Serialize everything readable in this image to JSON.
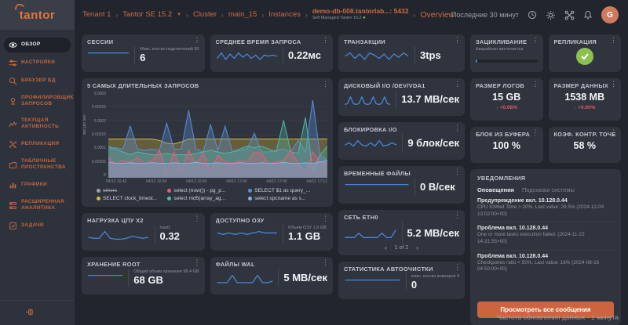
{
  "colors": {
    "accent": "#cf6a45",
    "spark": "#4a85d6",
    "alert_red": "#d85c6a",
    "ok_green": "#8cc152",
    "button_orange": "#cd6440"
  },
  "sidebar": {
    "logo": "tantor",
    "items": [
      {
        "label": "ОБЗОР",
        "icon": "eye-icon",
        "active": true
      },
      {
        "label": "НАСТРОЙКИ",
        "icon": "sliders-icon",
        "active": false
      },
      {
        "label": "БРАУЗЕР БД",
        "icon": "database-search-icon",
        "active": false
      },
      {
        "label": "ПРОФИЛИРОВЩИК ЗАПРОСОВ",
        "icon": "profiler-icon",
        "active": false
      },
      {
        "label": "ТЕКУЩАЯ АКТИВНОСТЬ",
        "icon": "activity-icon",
        "active": false
      },
      {
        "label": "РЕПЛИКАЦИЯ",
        "icon": "replication-icon",
        "active": false
      },
      {
        "label": "ТАБЛИЧНЫЕ ПРОСТРАНСТВА",
        "icon": "tablespace-icon",
        "active": false
      },
      {
        "label": "ГРАФИКИ",
        "icon": "charts-icon",
        "active": false
      },
      {
        "label": "РАСШИРЕННАЯ АНАЛИТИКА",
        "icon": "analytics-icon",
        "active": false
      },
      {
        "label": "ЗАДАЧИ",
        "icon": "tasks-icon",
        "active": false
      }
    ]
  },
  "header": {
    "breadcrumbs": [
      "Tenant 1",
      "Tantor SE 15.2",
      "Cluster",
      "main_15",
      "Instances"
    ],
    "instance": {
      "name": "demo-db-008.tantorlab...: 5432",
      "subtitle": "Self Managed Tantor 15.2"
    },
    "current_page": "Overview",
    "time_range": "Последние 30 минут",
    "avatar": "G"
  },
  "cards": {
    "sessions": {
      "title": "СЕССИИ",
      "sublabel": "Макс. кол-во подключений 50",
      "value": "6",
      "spark": [
        5,
        5,
        5,
        5,
        5,
        5,
        5,
        5
      ]
    },
    "avg_query": {
      "title": "СРЕДНЕЕ ВРЕМЯ ЗАПРОСА",
      "value": "0.22мс",
      "spark": [
        3,
        8,
        2,
        7,
        3,
        8,
        4,
        7,
        3,
        6,
        2,
        6,
        5,
        6,
        5
      ]
    },
    "transactions": {
      "title": "ТРАНЗАКЦИИ",
      "value": "3tps",
      "spark": [
        5,
        8,
        3,
        7,
        2,
        8,
        6,
        3,
        7,
        2,
        7,
        4,
        8,
        5
      ]
    },
    "wraparound": {
      "title": "ЗАЦИКЛИВАНИЕ",
      "sublabel": "Аварийная автоочистка",
      "progress_pct": 2
    },
    "replication": {
      "title": "РЕПЛИКАЦИЯ",
      "status": "ok"
    },
    "disk_io": {
      "title": "ДИСКОВЫЙ I/O /DEV/VDA1",
      "value": "13.7 MB/сек",
      "spark": [
        1,
        2,
        9,
        2,
        1,
        2,
        9,
        2,
        1,
        2,
        9,
        2,
        1,
        2,
        9,
        2,
        1
      ]
    },
    "log_size": {
      "title": "РАЗМЕР ЛОГОВ",
      "value": "15 GB",
      "delta": "↑ +0.06%"
    },
    "data_size": {
      "title": "РАЗМЕР ДАННЫХ",
      "value": "1538 MB",
      "delta": "↑ +0.00%"
    },
    "block_io": {
      "title": "БЛОКИРОВКА I/O",
      "value": "9 блок/сек",
      "spark": [
        4,
        6,
        3,
        8,
        4,
        3,
        6,
        3,
        8,
        3,
        4,
        6,
        4
      ]
    },
    "buffer_hit": {
      "title": "БЛОК ИЗ БУФЕРА",
      "value": "100 %"
    },
    "checkpoint_ratio": {
      "title": "КОЭФ. КОНТР. ТОЧЕК",
      "value": "58 %"
    },
    "temp_files": {
      "title": "ВРЕМЕННЫЕ ФАЙЛЫ",
      "value": "0 B/сек",
      "spark": [
        2,
        2,
        2,
        2,
        2,
        2,
        2,
        2
      ]
    },
    "cpu_load": {
      "title": "НАГРУЗКА ЦПУ Х2",
      "sublabel": "load1",
      "value": "0.32",
      "spark": [
        3,
        2,
        2,
        9,
        2,
        1,
        1,
        2,
        4,
        3,
        2,
        3
      ]
    },
    "ram": {
      "title": "ДОСТУПНО ОЗУ",
      "sublabel": "Объем ОЗУ 1.9 GB",
      "value": "1.1 GB",
      "spark": [
        5,
        4,
        5,
        4,
        5,
        4,
        5,
        6,
        5,
        5,
        5
      ]
    },
    "network": {
      "title": "СЕТЬ ETH0",
      "value": "5.2 MB/сек",
      "spark": [
        1,
        1,
        1,
        5,
        1,
        1,
        1,
        1,
        5,
        1,
        1,
        8
      ],
      "pager": {
        "prev": "‹",
        "label": "1 of 2",
        "next": "›"
      }
    },
    "storage": {
      "title": "ХРАНЕНИЕ ROOT",
      "sublabel": "Общий объем хранения 98.4 GB",
      "value": "68 GB",
      "spark": [
        5,
        5,
        5,
        5,
        5,
        5,
        5,
        5
      ]
    },
    "wal": {
      "title": "ФАЙЛЫ WAL",
      "value": "5 MB/сек",
      "spark": [
        1,
        1,
        1,
        6,
        1,
        1,
        1,
        1,
        6,
        1,
        1,
        2
      ]
    },
    "autovacuum": {
      "title": "СТАТИСТИКА АВТООЧИСТКИ",
      "sublabel": "макс. кол-во воркеров 4",
      "value": "0",
      "spark": [
        3,
        3,
        3,
        3,
        3,
        3,
        3,
        3
      ]
    }
  },
  "chart_data": {
    "type": "area",
    "title": "5 САМЫХ ДЛИТЕЛЬНЫХ ЗАПРОСОВ",
    "ylabel": "sec per sec",
    "ylim": [
      0,
      0.0003
    ],
    "value_scale": 1e-05,
    "yticks": [
      "0.0003",
      "0.00025",
      "0.0002",
      "0.00015",
      "0.0001",
      "0.00005",
      "0"
    ],
    "xticks": [
      "04/12 16:42",
      "04/12 16:50",
      "04/12 16:55",
      "04/12 17:00",
      "04/12 17:05",
      "04/12 17:12"
    ],
    "series": [
      {
        "name": "SELECT clock_timest...",
        "color": "#d4b83f",
        "values": [
          13.5,
          13.5,
          13.5,
          13.5,
          13.5,
          13.5,
          13.5,
          13,
          12,
          11.8,
          12.5,
          13.5,
          13.5,
          13.5,
          13.5,
          13.5,
          13.5,
          13.5,
          13.5,
          13.5,
          13.5,
          13.5,
          13.5,
          13.5,
          13.5,
          13.5,
          13.5,
          13.5,
          13.5,
          13.5,
          13.5
        ]
      },
      {
        "name": "SELECT $1 as query_...",
        "color": "#5b8fd9",
        "values": [
          10,
          10.5,
          10,
          18,
          10,
          9.5,
          10,
          9.5,
          19,
          10,
          10,
          23.5,
          10,
          9,
          18.5,
          9.5,
          18,
          9,
          9.5,
          10,
          15.5,
          9,
          9,
          9.5,
          10,
          9,
          13,
          9,
          27,
          8,
          6
        ]
      },
      {
        "name": "select md5(array_ag...",
        "color": "#4fb8a8",
        "values": [
          11,
          10,
          9,
          8,
          9,
          8.5,
          8,
          8,
          8.5,
          8,
          8,
          8,
          8.5,
          9,
          9.5,
          9,
          8.5,
          9,
          10,
          11,
          10.5,
          11,
          10,
          9,
          20,
          9,
          8.5,
          21,
          3,
          8,
          11
        ]
      },
      {
        "name": "select (now()) - pg_p...",
        "color": "#e0607a",
        "values": [
          7,
          5,
          6,
          5.5,
          7,
          5,
          6,
          9.5,
          2,
          9,
          2.5,
          9.5,
          5,
          8.5,
          2,
          8,
          5.5,
          5,
          6,
          5.5,
          9,
          8.5,
          5,
          5.5,
          6,
          9.5,
          5,
          2,
          9,
          5.5,
          5
        ]
      },
      {
        "name": "select spcname as s...",
        "color": "#7fb3e8",
        "values": [
          5.5,
          5,
          5,
          5.2,
          5,
          5,
          5.3,
          5,
          5,
          5.2,
          5,
          5,
          5.4,
          5,
          5,
          5.2,
          5,
          5,
          5.3,
          5,
          5,
          5.2,
          5,
          5,
          5.4,
          5,
          5,
          5.2,
          5,
          5.5,
          6
        ]
      }
    ],
    "legend": [
      {
        "label": "others",
        "color": "#9aa0a8",
        "disabled": true
      },
      {
        "label": "select (now()) - pg_p...",
        "color": "#e0607a",
        "disabled": false
      },
      {
        "label": "SELECT $1 as query_...",
        "color": "#5b8fd9",
        "disabled": false
      },
      {
        "label": "SELECT clock_timest...",
        "color": "#d4b83f",
        "disabled": false
      },
      {
        "label": "select md5(array_ag...",
        "color": "#4fb8a8",
        "disabled": false
      },
      {
        "label": "select spcname as s...",
        "color": "#7fb3e8",
        "disabled": false
      }
    ]
  },
  "notifications": {
    "title": "УВЕДОМЛЕНИЯ",
    "tabs": [
      {
        "label": "Оповещения",
        "active": true
      },
      {
        "label": "Подсказки системы",
        "active": false
      }
    ],
    "alerts": [
      {
        "title": "Предупреждение вкл. 10.128.0.44",
        "body": "CPU IOWait Time > 20%, Last value: 29.5% (2024-12-04 13:02:00+00)"
      },
      {
        "title": "Проблема вкл. 10.128.0.44",
        "body": "One or more tasks execution failed. (2024-11-22 14:31:55+00)"
      },
      {
        "title": "Проблема вкл. 10.128.0.44",
        "body": "Checkpoints ratio < 50%, Last value: 16% (2024-08-16 04:50:00+00)"
      }
    ],
    "button_label": "Просмотреть все сообщения"
  },
  "footer_note": "Частота обновления данных - 1 минута"
}
